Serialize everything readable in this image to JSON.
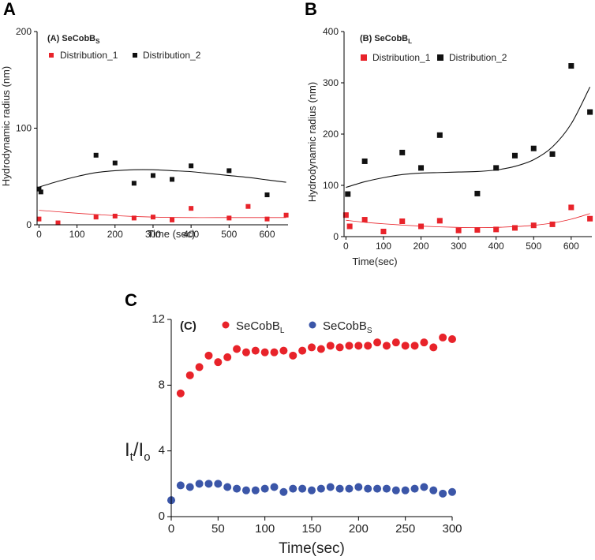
{
  "colors": {
    "red": "#e8232a",
    "black": "#111111",
    "blue": "#3b56a8"
  },
  "chart_data": [
    {
      "panel": "A",
      "type": "scatter",
      "title_prefix": "(A) SeCobB",
      "title_sub": "S",
      "xlabel": "Time (sec)",
      "ylabel": "Hydrodynamic radius (nm)",
      "xlim": [
        -5,
        655
      ],
      "ylim": [
        0,
        200
      ],
      "xticks": [
        0,
        100,
        200,
        300,
        400,
        500,
        600
      ],
      "yticks": [
        0,
        100,
        200
      ],
      "series": [
        {
          "name": "Distribution_1",
          "color": "red",
          "marker": "square",
          "points": [
            [
              0,
              6
            ],
            [
              50,
              2
            ],
            [
              150,
              8
            ],
            [
              200,
              9
            ],
            [
              250,
              7
            ],
            [
              300,
              8
            ],
            [
              350,
              5
            ],
            [
              400,
              17
            ],
            [
              500,
              7
            ],
            [
              550,
              19
            ],
            [
              600,
              6
            ],
            [
              650,
              10
            ]
          ],
          "fit": [
            [
              0,
              15
            ],
            [
              100,
              12
            ],
            [
              200,
              9.5
            ],
            [
              300,
              8
            ],
            [
              400,
              7.5
            ],
            [
              500,
              7.5
            ],
            [
              600,
              7.5
            ],
            [
              650,
              7.5
            ]
          ]
        },
        {
          "name": "Distribution_2",
          "color": "black",
          "marker": "square",
          "points": [
            [
              0,
              37
            ],
            [
              5,
              34
            ],
            [
              150,
              72
            ],
            [
              200,
              64
            ],
            [
              250,
              43
            ],
            [
              300,
              51
            ],
            [
              350,
              47
            ],
            [
              400,
              61
            ],
            [
              500,
              56
            ],
            [
              600,
              31
            ]
          ],
          "fit": [
            [
              0,
              39
            ],
            [
              50,
              45
            ],
            [
              100,
              50
            ],
            [
              150,
              54
            ],
            [
              200,
              56
            ],
            [
              250,
              57
            ],
            [
              300,
              57
            ],
            [
              350,
              56
            ],
            [
              400,
              55
            ],
            [
              450,
              53
            ],
            [
              500,
              51
            ],
            [
              550,
              49
            ],
            [
              600,
              46.5
            ],
            [
              650,
              44
            ]
          ]
        }
      ]
    },
    {
      "panel": "B",
      "type": "scatter",
      "title_prefix": "(B) SeCobB",
      "title_sub": "L",
      "xlabel": "Time(sec)",
      "ylabel": "Hydrodynamic radius (nm)",
      "xlim": [
        -5,
        655
      ],
      "ylim": [
        0,
        400
      ],
      "xticks": [
        0,
        100,
        200,
        300,
        400,
        500,
        600
      ],
      "yticks": [
        0,
        100,
        200,
        300,
        400
      ],
      "series": [
        {
          "name": "Distribution_1",
          "color": "red",
          "marker": "square",
          "points": [
            [
              0,
              42
            ],
            [
              10,
              20
            ],
            [
              50,
              33
            ],
            [
              100,
              10
            ],
            [
              150,
              30
            ],
            [
              200,
              20
            ],
            [
              250,
              31
            ],
            [
              300,
              12
            ],
            [
              350,
              13
            ],
            [
              400,
              14
            ],
            [
              450,
              17
            ],
            [
              500,
              22
            ],
            [
              550,
              24
            ],
            [
              600,
              57
            ],
            [
              650,
              35
            ]
          ],
          "fit": [
            [
              0,
              32
            ],
            [
              50,
              28
            ],
            [
              100,
              25
            ],
            [
              150,
              22.5
            ],
            [
              200,
              20.5
            ],
            [
              250,
              19
            ],
            [
              300,
              18
            ],
            [
              350,
              17.5
            ],
            [
              400,
              18
            ],
            [
              450,
              19.5
            ],
            [
              500,
              22
            ],
            [
              550,
              26.5
            ],
            [
              600,
              34
            ],
            [
              650,
              45
            ]
          ]
        },
        {
          "name": "Distribution_2",
          "color": "black",
          "marker": "square",
          "points": [
            [
              5,
              83
            ],
            [
              50,
              147
            ],
            [
              150,
              164
            ],
            [
              200,
              134
            ],
            [
              250,
              198
            ],
            [
              350,
              84
            ],
            [
              400,
              134
            ],
            [
              450,
              158
            ],
            [
              500,
              172
            ],
            [
              550,
              161
            ],
            [
              600,
              333
            ],
            [
              650,
              243
            ]
          ],
          "fit": [
            [
              0,
              96
            ],
            [
              50,
              107
            ],
            [
              100,
              115
            ],
            [
              150,
              121
            ],
            [
              200,
              124
            ],
            [
              250,
              125
            ],
            [
              300,
              126
            ],
            [
              350,
              127
            ],
            [
              400,
              130
            ],
            [
              450,
              137
            ],
            [
              500,
              150
            ],
            [
              550,
              175
            ],
            [
              600,
              220
            ],
            [
              650,
              292
            ]
          ]
        }
      ]
    },
    {
      "panel": "C",
      "type": "scatter",
      "title": "(C)",
      "xlabel": "Time(sec)",
      "ylabel_main": "I",
      "ylabel_sub1": "t",
      "ylabel_slash": "/I",
      "ylabel_sub2": "o",
      "xlim": [
        0,
        300
      ],
      "ylim": [
        0,
        12
      ],
      "xticks": [
        0,
        50,
        100,
        150,
        200,
        250,
        300
      ],
      "yticks": [
        0,
        4,
        8,
        12
      ],
      "series": [
        {
          "name": "SeCobB",
          "sub": "L",
          "color": "red",
          "marker": "circle",
          "points": [
            [
              10,
              7.5
            ],
            [
              20,
              8.6
            ],
            [
              30,
              9.1
            ],
            [
              40,
              9.8
            ],
            [
              50,
              9.4
            ],
            [
              60,
              9.7
            ],
            [
              70,
              10.2
            ],
            [
              80,
              10.0
            ],
            [
              90,
              10.1
            ],
            [
              100,
              10.0
            ],
            [
              110,
              10.0
            ],
            [
              120,
              10.1
            ],
            [
              130,
              9.8
            ],
            [
              140,
              10.1
            ],
            [
              150,
              10.3
            ],
            [
              160,
              10.2
            ],
            [
              170,
              10.4
            ],
            [
              180,
              10.3
            ],
            [
              190,
              10.4
            ],
            [
              200,
              10.4
            ],
            [
              210,
              10.4
            ],
            [
              220,
              10.6
            ],
            [
              230,
              10.4
            ],
            [
              240,
              10.6
            ],
            [
              250,
              10.4
            ],
            [
              260,
              10.4
            ],
            [
              270,
              10.6
            ],
            [
              280,
              10.3
            ],
            [
              290,
              10.9
            ],
            [
              300,
              10.8
            ]
          ]
        },
        {
          "name": "SeCobB",
          "sub": "S",
          "color": "blue",
          "marker": "circle",
          "points": [
            [
              0,
              1.0
            ],
            [
              10,
              1.9
            ],
            [
              20,
              1.8
            ],
            [
              30,
              2.0
            ],
            [
              40,
              2.0
            ],
            [
              50,
              2.0
            ],
            [
              60,
              1.8
            ],
            [
              70,
              1.7
            ],
            [
              80,
              1.6
            ],
            [
              90,
              1.6
            ],
            [
              100,
              1.7
            ],
            [
              110,
              1.8
            ],
            [
              120,
              1.5
            ],
            [
              130,
              1.7
            ],
            [
              140,
              1.7
            ],
            [
              150,
              1.6
            ],
            [
              160,
              1.7
            ],
            [
              170,
              1.8
            ],
            [
              180,
              1.7
            ],
            [
              190,
              1.7
            ],
            [
              200,
              1.8
            ],
            [
              210,
              1.7
            ],
            [
              220,
              1.7
            ],
            [
              230,
              1.7
            ],
            [
              240,
              1.6
            ],
            [
              250,
              1.6
            ],
            [
              260,
              1.7
            ],
            [
              270,
              1.8
            ],
            [
              280,
              1.6
            ],
            [
              290,
              1.4
            ],
            [
              300,
              1.5
            ]
          ]
        }
      ]
    }
  ]
}
